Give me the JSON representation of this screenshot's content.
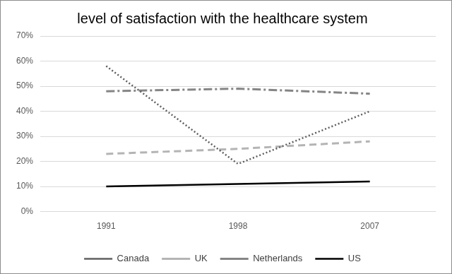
{
  "chart_data": {
    "type": "line",
    "title": "level of satisfaction with the healthcare system",
    "categories": [
      "1991",
      "1998",
      "2007"
    ],
    "series": [
      {
        "name": "Canada",
        "color": "#5f5f5f",
        "values": [
          58,
          19,
          40
        ],
        "line_style": "dotted"
      },
      {
        "name": "UK",
        "color": "#b4b4b4",
        "values": [
          23,
          25,
          28
        ],
        "line_style": "dashed"
      },
      {
        "name": "Netherlands",
        "color": "#858585",
        "values": [
          48,
          49,
          47
        ],
        "line_style": "dashdot"
      },
      {
        "name": "US",
        "color": "#000000",
        "values": [
          10,
          11,
          12
        ],
        "line_style": "solid"
      }
    ],
    "ylim": [
      0,
      70
    ],
    "yticks": [
      {
        "value": 0,
        "label": "0%"
      },
      {
        "value": 10,
        "label": "10%"
      },
      {
        "value": 20,
        "label": "20%"
      },
      {
        "value": 30,
        "label": "30%"
      },
      {
        "value": 40,
        "label": "40%"
      },
      {
        "value": 50,
        "label": "50%"
      },
      {
        "value": 60,
        "label": "60%"
      },
      {
        "value": 70,
        "label": "70%"
      }
    ],
    "grid": true,
    "legend": "bottom"
  }
}
